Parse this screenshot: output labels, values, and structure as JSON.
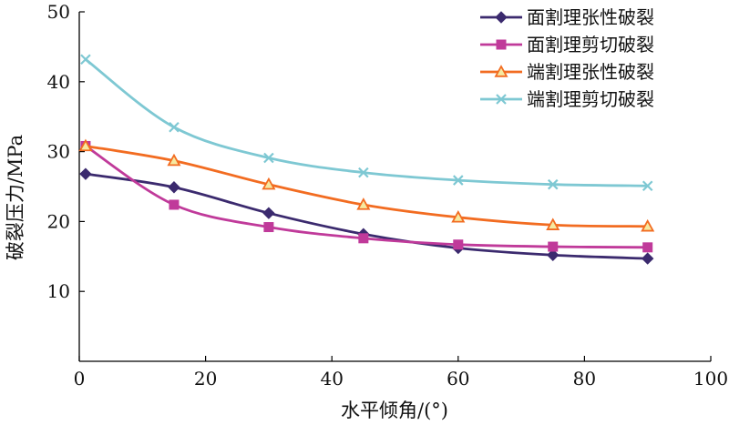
{
  "chart_data": {
    "type": "line",
    "xlabel": "水平倾角/(°)",
    "ylabel": "破裂压力/MPa",
    "xlim": [
      0,
      100
    ],
    "ylim": [
      0,
      50
    ],
    "xticks": [
      0,
      20,
      40,
      60,
      80,
      100
    ],
    "yticks": [
      10,
      20,
      30,
      40,
      50
    ],
    "grid": false,
    "legend_position": "top-right",
    "x": [
      1,
      15,
      30,
      45,
      60,
      75,
      90
    ],
    "series": [
      {
        "name": "面割理张性破裂",
        "values": [
          26.8,
          24.9,
          21.2,
          18.2,
          16.2,
          15.2,
          14.7
        ],
        "color": "#3b2a6e",
        "marker": "diamond"
      },
      {
        "name": "面割理剪切破裂",
        "values": [
          30.8,
          22.4,
          19.2,
          17.6,
          16.7,
          16.4,
          16.3
        ],
        "color": "#c03a9a",
        "marker": "square"
      },
      {
        "name": "端割理张性破裂",
        "values": [
          30.8,
          28.7,
          25.3,
          22.4,
          20.6,
          19.5,
          19.3
        ],
        "color": "#f26c21",
        "marker": "triangle"
      },
      {
        "name": "端割理剪切破裂",
        "values": [
          43.2,
          33.5,
          29.1,
          27.0,
          25.9,
          25.3,
          25.1
        ],
        "color": "#7ec8d3",
        "marker": "x"
      }
    ]
  }
}
